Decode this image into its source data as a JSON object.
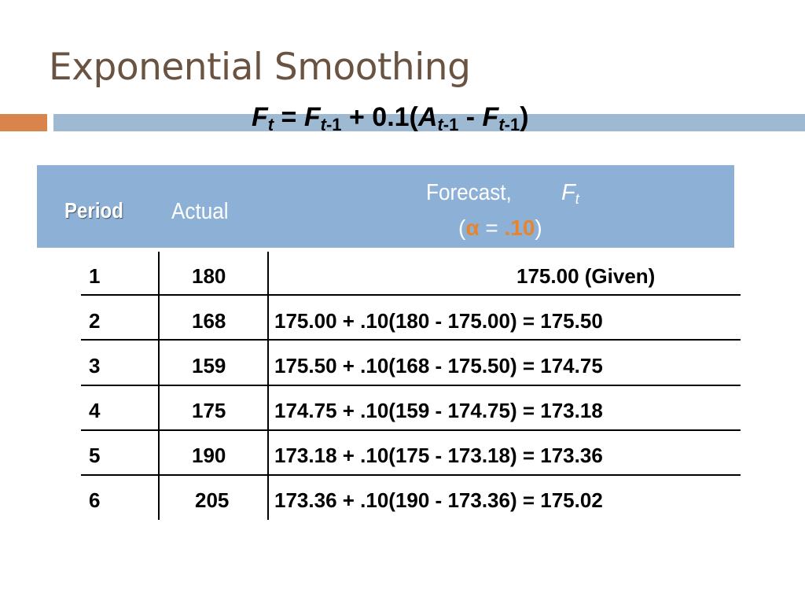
{
  "title": "Exponential Smoothing",
  "formula": {
    "F": "F",
    "t": "t",
    "eq": " = ",
    "t1": "t",
    "minus1": "-1",
    "plus": " + 0.1(",
    "A": "A",
    "dash": " - ",
    "close": ")"
  },
  "table": {
    "headers": {
      "period": "Period",
      "actual": "Actual",
      "forecast": "Forecast,",
      "ft_symbol": "F",
      "ft_sub": "t",
      "alpha_open": "(",
      "alpha": "α",
      "alpha_eq": " = ",
      "alpha_value": ".10",
      "alpha_close": ")"
    },
    "rows": [
      {
        "period": "1",
        "actual": "180",
        "forecast": "175.00 (Given)"
      },
      {
        "period": "2",
        "actual": "168",
        "forecast": "175.00 + .10(180 - 175.00) = 175.50"
      },
      {
        "period": "3",
        "actual": "159",
        "forecast": "175.50 + .10(168 - 175.50) = 174.75"
      },
      {
        "period": "4",
        "actual": "175",
        "forecast": "174.75 + .10(159 - 174.75) = 173.18"
      },
      {
        "period": "5",
        "actual": "190",
        "forecast": "173.18 + .10(175 - 173.18) = 173.36"
      },
      {
        "period": "6",
        "actual": "205",
        "forecast": "173.36 + .10(190 - 173.36) = 175.02"
      }
    ]
  },
  "colors": {
    "title": "#6b5342",
    "accent_orange": "#d9844a",
    "accent_blue": "#9eb9d2",
    "header_band": "#8db1d6",
    "alpha_highlight": "#e8842c"
  }
}
